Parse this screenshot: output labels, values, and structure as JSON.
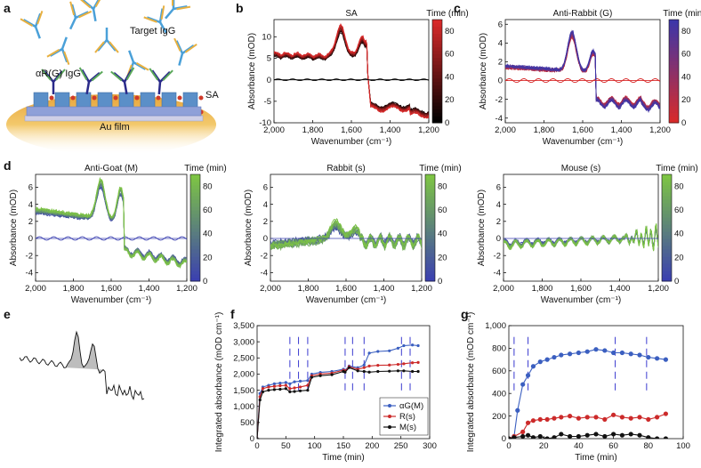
{
  "panel_labels": [
    "a",
    "b",
    "c",
    "d",
    "e",
    "f",
    "g"
  ],
  "schematic": {
    "target_label": "Target IgG",
    "capture_label": "αR(G) IgG",
    "sa_label": "SA",
    "film_label": "Au film"
  },
  "chart_data": [
    {
      "id": "b",
      "type": "line",
      "title": "SA",
      "xlabel": "Wavenumber (cm⁻¹)",
      "ylabel": "Absorbance (mOD)",
      "xlim": [
        2000,
        1200
      ],
      "ylim": [
        -10,
        14
      ],
      "xticks": [
        2000,
        1800,
        1600,
        1400,
        1200
      ],
      "xtick_labels": [
        "2,000",
        "1,800",
        "1,600",
        "1,400",
        "1,200"
      ],
      "yticks": [
        -10,
        -5,
        0,
        5,
        10
      ],
      "ytick_labels": [
        "-10",
        "-5",
        "0",
        "5",
        "10"
      ],
      "profile": "sa",
      "colorbar": {
        "title": "Time (min)",
        "ticks": [
          0,
          20,
          40,
          60,
          80
        ],
        "range": [
          0,
          90
        ],
        "colors": [
          "#000000",
          "#d82a2a"
        ]
      }
    },
    {
      "id": "c",
      "type": "line",
      "title": "Anti-Rabbit (G)",
      "xlabel": "Wavenumber (cm⁻¹)",
      "ylabel": "Absorbance (mOD)",
      "xlim": [
        2000,
        1200
      ],
      "ylim": [
        -4.5,
        6.5
      ],
      "xticks": [
        2000,
        1800,
        1600,
        1400,
        1200
      ],
      "xtick_labels": [
        "2,000",
        "1,800",
        "1,600",
        "1,400",
        "1,200"
      ],
      "yticks": [
        -4,
        -2,
        0,
        2,
        4,
        6
      ],
      "ytick_labels": [
        "-4",
        "-2",
        "0",
        "2",
        "4",
        "6"
      ],
      "profile": "antirabbit",
      "colorbar": {
        "title": "Time (min)",
        "ticks": [
          0,
          20,
          40,
          60,
          80
        ],
        "range": [
          0,
          90
        ],
        "colors": [
          "#d82a2a",
          "#3d36a8"
        ]
      }
    },
    {
      "id": "d1",
      "type": "line",
      "title": "Anti-Goat (M)",
      "xlabel": "Wavenumber (cm⁻¹)",
      "ylabel": "Absorbance (mOD)",
      "xlim": [
        2000,
        1200
      ],
      "ylim": [
        -5,
        7.5
      ],
      "xticks": [
        2000,
        1800,
        1600,
        1400,
        1200
      ],
      "xtick_labels": [
        "2,000",
        "1,800",
        "1,600",
        "1,400",
        "1,200"
      ],
      "yticks": [
        -4,
        -2,
        0,
        2,
        4,
        6
      ],
      "ytick_labels": [
        "-4",
        "-2",
        "0",
        "2",
        "4",
        "6"
      ],
      "profile": "antigoat",
      "colorbar": {
        "title": "Time (min)",
        "ticks": [
          0,
          20,
          40,
          60,
          80
        ],
        "range": [
          0,
          90
        ],
        "colors": [
          "#3b40b0",
          "#7dc444"
        ]
      }
    },
    {
      "id": "d2",
      "type": "line",
      "title": "Rabbit (s)",
      "xlabel": "Wavenumber (cm⁻¹)",
      "ylabel": "Absorbance (mOD)",
      "xlim": [
        2000,
        1200
      ],
      "ylim": [
        -5,
        7.5
      ],
      "xticks": [
        2000,
        1800,
        1600,
        1400,
        1200
      ],
      "xtick_labels": [
        "2,000",
        "1,800",
        "1,600",
        "1,400",
        "1,200"
      ],
      "yticks": [
        -4,
        -2,
        0,
        2,
        4,
        6
      ],
      "ytick_labels": [
        "-4",
        "-2",
        "0",
        "2",
        "4",
        "6"
      ],
      "profile": "rabbit",
      "colorbar": {
        "title": "Time (min)",
        "ticks": [
          0,
          20,
          40,
          60,
          80
        ],
        "range": [
          0,
          90
        ],
        "colors": [
          "#3b40b0",
          "#7dc444"
        ]
      }
    },
    {
      "id": "d3",
      "type": "line",
      "title": "Mouse (s)",
      "xlabel": "Wavenumber (cm⁻¹)",
      "ylabel": "Absorbance (mOD)",
      "xlim": [
        2000,
        1200
      ],
      "ylim": [
        -5,
        7.5
      ],
      "xticks": [
        2000,
        1800,
        1600,
        1400,
        1200
      ],
      "xtick_labels": [
        "2,000",
        "1,800",
        "1,600",
        "1,400",
        "1,200"
      ],
      "yticks": [
        -4,
        -2,
        0,
        2,
        4,
        6
      ],
      "ytick_labels": [
        "-4",
        "-2",
        "0",
        "2",
        "4",
        "6"
      ],
      "profile": "mouse",
      "colorbar": {
        "title": "Time (min)",
        "ticks": [
          0,
          20,
          40,
          60,
          80
        ],
        "range": [
          0,
          90
        ],
        "colors": [
          "#3b40b0",
          "#7dc444"
        ]
      }
    },
    {
      "id": "f",
      "type": "line",
      "xlabel": "Time (min)",
      "ylabel": "Integrated absorbance (mOD cm⁻¹)",
      "xlim": [
        0,
        300
      ],
      "ylim": [
        0,
        3500
      ],
      "xticks": [
        0,
        50,
        100,
        150,
        200,
        250,
        300
      ],
      "xtick_labels": [
        "0",
        "50",
        "100",
        "150",
        "200",
        "250",
        "300"
      ],
      "yticks": [
        0,
        500,
        1000,
        1500,
        2000,
        2500,
        3000,
        3500
      ],
      "ytick_labels": [
        "0",
        "500",
        "1,000",
        "1,500",
        "2,000",
        "2,500",
        "3,000",
        "3,500"
      ],
      "injections": [
        57,
        72,
        88,
        153,
        166,
        186,
        251,
        266
      ],
      "series": [
        {
          "name": "αG(M)",
          "color": "#3b5fc0",
          "points": [
            [
              0,
              0
            ],
            [
              5,
              1400
            ],
            [
              10,
              1600
            ],
            [
              20,
              1650
            ],
            [
              30,
              1700
            ],
            [
              40,
              1720
            ],
            [
              50,
              1740
            ],
            [
              57,
              1700
            ],
            [
              65,
              1760
            ],
            [
              75,
              1780
            ],
            [
              88,
              1800
            ],
            [
              95,
              2000
            ],
            [
              110,
              2050
            ],
            [
              130,
              2080
            ],
            [
              150,
              2150
            ],
            [
              153,
              2120
            ],
            [
              160,
              2250
            ],
            [
              175,
              2200
            ],
            [
              186,
              2280
            ],
            [
              195,
              2650
            ],
            [
              210,
              2700
            ],
            [
              230,
              2720
            ],
            [
              245,
              2800
            ],
            [
              255,
              2880
            ],
            [
              270,
              2900
            ],
            [
              280,
              2880
            ]
          ]
        },
        {
          "name": "R(s)",
          "color": "#cc2a2a",
          "points": [
            [
              0,
              0
            ],
            [
              5,
              1300
            ],
            [
              10,
              1550
            ],
            [
              20,
              1600
            ],
            [
              30,
              1620
            ],
            [
              40,
              1640
            ],
            [
              50,
              1650
            ],
            [
              57,
              1550
            ],
            [
              65,
              1570
            ],
            [
              75,
              1600
            ],
            [
              88,
              1650
            ],
            [
              95,
              1950
            ],
            [
              110,
              2000
            ],
            [
              130,
              2030
            ],
            [
              150,
              2120
            ],
            [
              153,
              2100
            ],
            [
              160,
              2230
            ],
            [
              175,
              2150
            ],
            [
              186,
              2200
            ],
            [
              195,
              2250
            ],
            [
              210,
              2270
            ],
            [
              230,
              2280
            ],
            [
              245,
              2300
            ],
            [
              255,
              2320
            ],
            [
              270,
              2350
            ],
            [
              280,
              2360
            ]
          ]
        },
        {
          "name": "M(s)",
          "color": "#111111",
          "points": [
            [
              0,
              0
            ],
            [
              5,
              1200
            ],
            [
              10,
              1450
            ],
            [
              20,
              1500
            ],
            [
              30,
              1520
            ],
            [
              40,
              1530
            ],
            [
              50,
              1550
            ],
            [
              57,
              1450
            ],
            [
              65,
              1460
            ],
            [
              75,
              1480
            ],
            [
              88,
              1500
            ],
            [
              95,
              1900
            ],
            [
              110,
              1950
            ],
            [
              130,
              1980
            ],
            [
              150,
              2080
            ],
            [
              153,
              2060
            ],
            [
              160,
              2200
            ],
            [
              175,
              2100
            ],
            [
              186,
              2080
            ],
            [
              195,
              2060
            ],
            [
              210,
              2080
            ],
            [
              230,
              2090
            ],
            [
              245,
              2100
            ],
            [
              255,
              2100
            ],
            [
              270,
              2080
            ],
            [
              280,
              2080
            ]
          ]
        }
      ]
    },
    {
      "id": "g",
      "type": "line",
      "xlabel": "Time (min)",
      "ylabel": "Integrated absorbance (mOD cm⁻¹)",
      "xlim": [
        0,
        100
      ],
      "ylim": [
        0,
        1000
      ],
      "xticks": [
        0,
        20,
        40,
        60,
        80,
        100
      ],
      "xtick_labels": [
        "0",
        "20",
        "40",
        "60",
        "80",
        "100"
      ],
      "yticks": [
        0,
        200,
        400,
        600,
        800,
        1000
      ],
      "ytick_labels": [
        "0",
        "200",
        "400",
        "600",
        "800",
        "1,000"
      ],
      "injections": [
        3,
        11,
        61,
        79
      ],
      "series": [
        {
          "name": "blue",
          "color": "#3b5fc0",
          "points": [
            [
              0,
              0
            ],
            [
              3,
              20
            ],
            [
              5,
              250
            ],
            [
              8,
              480
            ],
            [
              11,
              560
            ],
            [
              14,
              640
            ],
            [
              18,
              680
            ],
            [
              22,
              700
            ],
            [
              26,
              720
            ],
            [
              30,
              740
            ],
            [
              35,
              750
            ],
            [
              40,
              760
            ],
            [
              45,
              770
            ],
            [
              50,
              790
            ],
            [
              55,
              780
            ],
            [
              60,
              760
            ],
            [
              65,
              760
            ],
            [
              70,
              750
            ],
            [
              75,
              740
            ],
            [
              80,
              720
            ],
            [
              85,
              710
            ],
            [
              90,
              700
            ]
          ]
        },
        {
          "name": "red",
          "color": "#cc2a2a",
          "points": [
            [
              0,
              0
            ],
            [
              3,
              20
            ],
            [
              8,
              60
            ],
            [
              11,
              140
            ],
            [
              14,
              160
            ],
            [
              18,
              170
            ],
            [
              22,
              170
            ],
            [
              26,
              180
            ],
            [
              30,
              190
            ],
            [
              35,
              200
            ],
            [
              40,
              180
            ],
            [
              45,
              190
            ],
            [
              50,
              190
            ],
            [
              55,
              170
            ],
            [
              60,
              210
            ],
            [
              65,
              190
            ],
            [
              70,
              180
            ],
            [
              75,
              190
            ],
            [
              80,
              170
            ],
            [
              85,
              190
            ],
            [
              90,
              220
            ]
          ]
        },
        {
          "name": "black",
          "color": "#111111",
          "points": [
            [
              0,
              0
            ],
            [
              3,
              10
            ],
            [
              8,
              20
            ],
            [
              11,
              30
            ],
            [
              14,
              10
            ],
            [
              18,
              20
            ],
            [
              22,
              0
            ],
            [
              26,
              10
            ],
            [
              30,
              40
            ],
            [
              35,
              20
            ],
            [
              40,
              20
            ],
            [
              45,
              30
            ],
            [
              50,
              40
            ],
            [
              55,
              20
            ],
            [
              60,
              40
            ],
            [
              65,
              30
            ],
            [
              70,
              40
            ],
            [
              75,
              30
            ],
            [
              80,
              10
            ],
            [
              85,
              0
            ],
            [
              90,
              0
            ]
          ]
        }
      ]
    }
  ]
}
